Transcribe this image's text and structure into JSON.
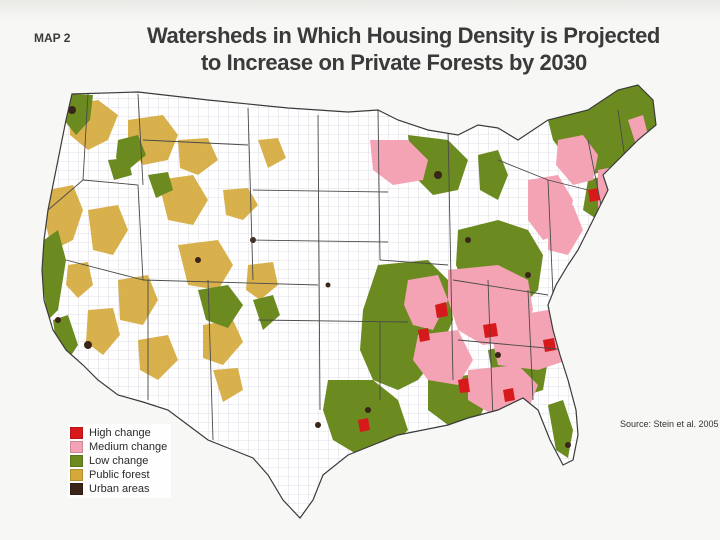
{
  "header": {
    "map_label": "MAP 2",
    "title_line1": "Watersheds in Which Housing Density is Projected",
    "title_line2": "to Increase on Private Forests by 2030"
  },
  "legend": {
    "items": [
      {
        "label": "High change",
        "color": "#d7191c"
      },
      {
        "label": "Medium change",
        "color": "#f4a3b4"
      },
      {
        "label": "Low change",
        "color": "#6b8a1f"
      },
      {
        "label": "Public forest",
        "color": "#d4a93a"
      },
      {
        "label": "Urban areas",
        "color": "#3b2418"
      }
    ]
  },
  "source": "Source: Stein et al. 2005",
  "colors": {
    "land": "#ffffff",
    "county_lines": "#b8b8c8",
    "state_lines": "#4a4a4a",
    "background": "#f7f7f5"
  }
}
